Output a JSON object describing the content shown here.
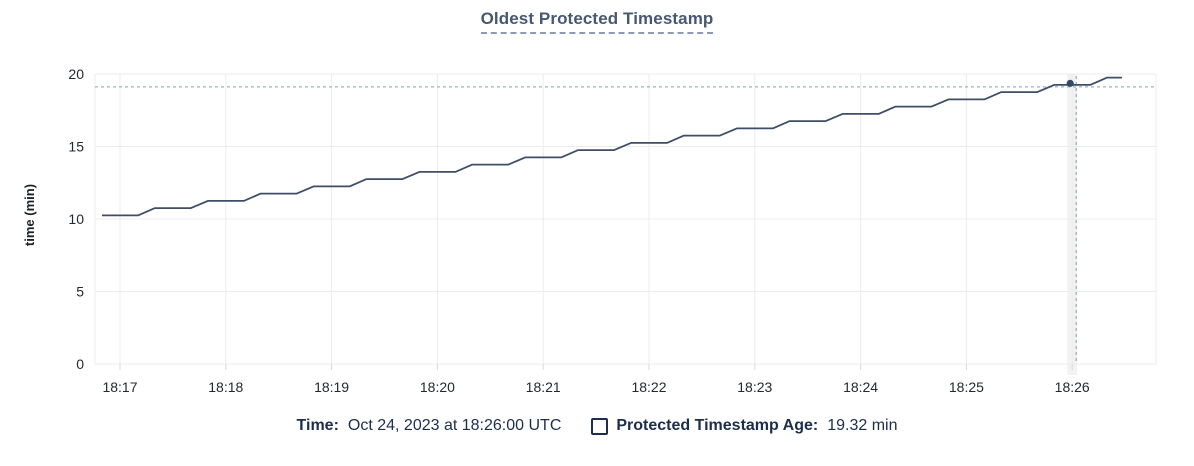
{
  "title": "Oldest Protected Timestamp",
  "legend": {
    "time_label": "Time:",
    "time_value": "Oct 24, 2023 at 18:26:00 UTC",
    "series_label": "Protected Timestamp Age:",
    "series_value": "19.32 min"
  },
  "chart_data": {
    "type": "line",
    "title": "Oldest Protected Timestamp",
    "xlabel": "",
    "ylabel": "time (min)",
    "ylim": [
      0,
      20
    ],
    "y_ticks": [
      0,
      5,
      10,
      15,
      20
    ],
    "x_tick_labels": [
      "18:17",
      "18:18",
      "18:19",
      "18:20",
      "18:21",
      "18:22",
      "18:23",
      "18:24",
      "18:25",
      "18:26"
    ],
    "grid": true,
    "legend_position": "bottom",
    "series": [
      {
        "name": "Protected Timestamp Age",
        "unit": "min",
        "x_unit": "minutes after 18:17 UTC",
        "points": [
          [
            -0.17,
            10.25
          ],
          [
            0.17,
            10.25
          ],
          [
            0.33,
            10.75
          ],
          [
            0.67,
            10.75
          ],
          [
            0.83,
            11.25
          ],
          [
            1.17,
            11.25
          ],
          [
            1.33,
            11.75
          ],
          [
            1.67,
            11.75
          ],
          [
            1.83,
            12.25
          ],
          [
            2.17,
            12.25
          ],
          [
            2.33,
            12.75
          ],
          [
            2.67,
            12.75
          ],
          [
            2.83,
            13.25
          ],
          [
            3.17,
            13.25
          ],
          [
            3.33,
            13.75
          ],
          [
            3.67,
            13.75
          ],
          [
            3.83,
            14.25
          ],
          [
            4.17,
            14.25
          ],
          [
            4.33,
            14.75
          ],
          [
            4.67,
            14.75
          ],
          [
            4.83,
            15.25
          ],
          [
            5.17,
            15.25
          ],
          [
            5.33,
            15.75
          ],
          [
            5.67,
            15.75
          ],
          [
            5.83,
            16.25
          ],
          [
            6.17,
            16.25
          ],
          [
            6.33,
            16.75
          ],
          [
            6.67,
            16.75
          ],
          [
            6.83,
            17.25
          ],
          [
            7.17,
            17.25
          ],
          [
            7.33,
            17.75
          ],
          [
            7.67,
            17.75
          ],
          [
            7.83,
            18.25
          ],
          [
            8.17,
            18.25
          ],
          [
            8.33,
            18.75
          ],
          [
            8.67,
            18.75
          ],
          [
            8.83,
            19.25
          ],
          [
            9.17,
            19.25
          ],
          [
            9.33,
            19.75
          ],
          [
            9.47,
            19.75
          ]
        ]
      }
    ],
    "highlight": {
      "x_minutes": 9.0,
      "x_label": "18:26",
      "time": "Oct 24, 2023 at 18:26:00 UTC",
      "value": 19.32,
      "value_label": "19.32 min"
    }
  },
  "colors": {
    "line": "#3e4e66",
    "dot": "#394a63",
    "crosshair": "#9db4be",
    "grid": "#ececec",
    "tick": "#d8d8d8",
    "axis_text": "#24292e",
    "title_text": "#475872",
    "legend_text": "#1c2e4a",
    "hover_band": "rgba(0,0,0,0.05)"
  }
}
